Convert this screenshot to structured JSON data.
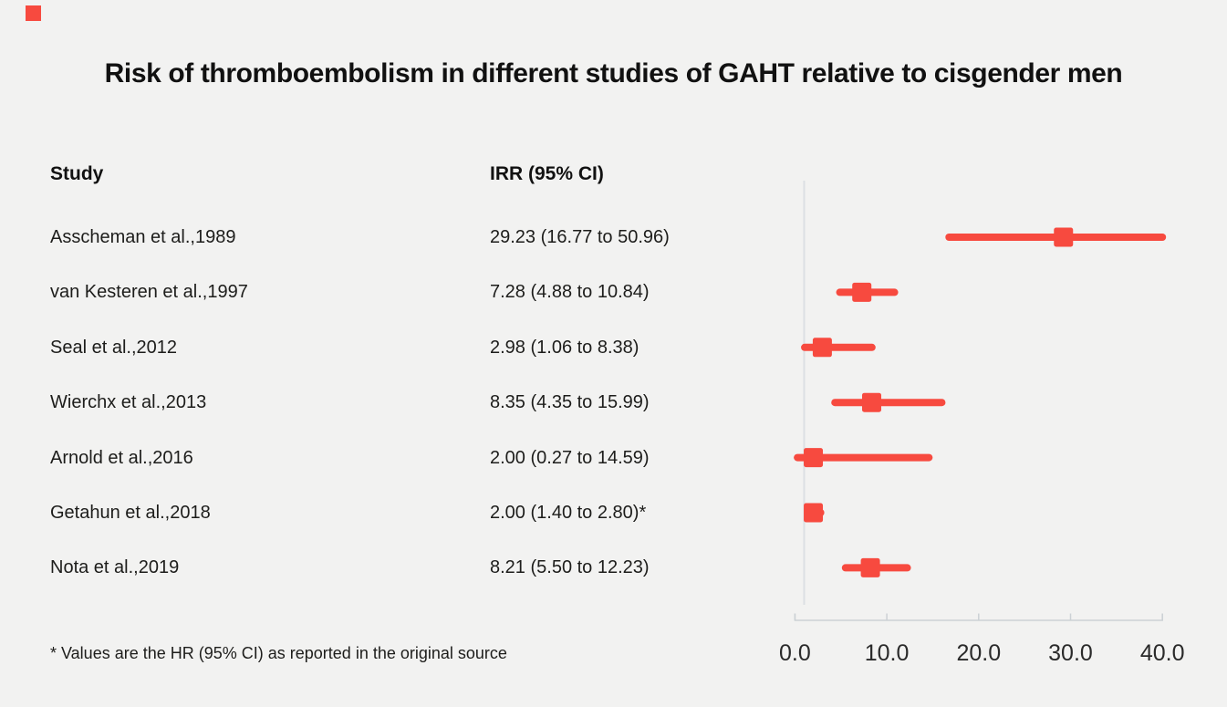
{
  "title": "Risk of thromboembolism in different studies of GAHT relative to cisgender men",
  "table": {
    "study_header": "Study",
    "irr_header": "IRR (95% CI)"
  },
  "footnote": "* Values are the HR (95% CI) as reported in the original source",
  "colors": {
    "background": "#f2f2f1",
    "accent_red": "#f74a3f",
    "brand_square": "#f74a3f",
    "axis_line": "#ccd1d5",
    "reference_line": "#dce0e3",
    "text": "#1d1d1b",
    "tick_text": "#2a2a2a"
  },
  "chart_data": {
    "type": "scatter",
    "subtype": "forest-plot",
    "title": "Risk of thromboembolism in different studies of GAHT relative to cisgender men",
    "xlabel": "",
    "ylabel": "",
    "xlim": [
      0,
      40
    ],
    "x_ticks": [
      0,
      10,
      20,
      30,
      40
    ],
    "x_tick_labels": [
      "0.0",
      "10.0",
      "20.0",
      "30.0",
      "40.0"
    ],
    "reference_line_value": 1.0,
    "grid": false,
    "legend": false,
    "marker": {
      "shape": "square",
      "color": "#f74a3f"
    },
    "clip_note": "Confidence intervals above 40 are clipped at the right edge of the axis",
    "studies": [
      {
        "label": "Asscheman et al.,1989",
        "irr_text": "29.23 (16.77 to 50.96)",
        "irr": 29.23,
        "ci_low": 16.77,
        "ci_high": 50.96
      },
      {
        "label": "van Kesteren et al.,1997",
        "irr_text": "7.28 (4.88 to 10.84)",
        "irr": 7.28,
        "ci_low": 4.88,
        "ci_high": 10.84
      },
      {
        "label": "Seal et al.,2012",
        "irr_text": "2.98 (1.06 to 8.38)",
        "irr": 2.98,
        "ci_low": 1.06,
        "ci_high": 8.38
      },
      {
        "label": "Wierchx et al.,2013",
        "irr_text": "8.35 (4.35 to 15.99)",
        "irr": 8.35,
        "ci_low": 4.35,
        "ci_high": 15.99
      },
      {
        "label": "Arnold et al.,2016",
        "irr_text": "2.00 (0.27 to 14.59)",
        "irr": 2.0,
        "ci_low": 0.27,
        "ci_high": 14.59
      },
      {
        "label": "Getahun et al.,2018",
        "irr_text": "2.00 (1.40 to 2.80)*",
        "irr": 2.0,
        "ci_low": 1.4,
        "ci_high": 2.8
      },
      {
        "label": "Nota et al.,2019",
        "irr_text": "8.21 (5.50 to 12.23)",
        "irr": 8.21,
        "ci_low": 5.5,
        "ci_high": 12.23
      }
    ]
  }
}
